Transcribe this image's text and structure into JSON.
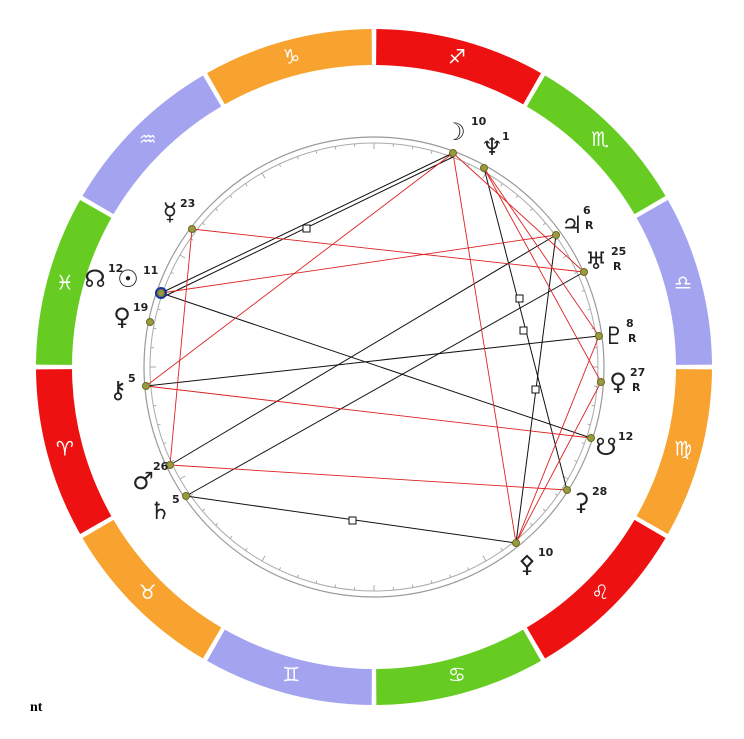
{
  "zodiac": [
    {
      "glyph": "♐"
    },
    {
      "glyph": "♏"
    },
    {
      "glyph": "♎"
    },
    {
      "glyph": "♍"
    },
    {
      "glyph": "♌"
    },
    {
      "glyph": "♋"
    },
    {
      "glyph": "♊"
    },
    {
      "glyph": "♉"
    },
    {
      "glyph": "♈"
    },
    {
      "glyph": "♓"
    },
    {
      "glyph": "♒"
    },
    {
      "glyph": "♑"
    }
  ],
  "planets": [
    {
      "glyph": "☽",
      "degree": "10"
    },
    {
      "glyph": "♆",
      "degree": "1"
    },
    {
      "glyph": "♃",
      "degree": "6",
      "retro": "R"
    },
    {
      "glyph": "♅",
      "degree": "25",
      "retro": "R"
    },
    {
      "glyph": "♇",
      "degree": "8",
      "retro": "R"
    },
    {
      "glyph": "♀",
      "degree": "27",
      "retro": "R"
    },
    {
      "glyph": "☋",
      "degree": "12"
    },
    {
      "glyph": "⚳",
      "degree": "28"
    },
    {
      "glyph": "⚴",
      "degree": "10"
    },
    {
      "glyph": "♄",
      "degree": "5"
    },
    {
      "glyph": "♂",
      "degree": "26"
    },
    {
      "glyph": "⚷",
      "degree": "5"
    },
    {
      "glyph": "♀",
      "degree": "19"
    },
    {
      "glyph": "☉",
      "degree": "11"
    },
    {
      "glyph": "☊",
      "degree": "12"
    },
    {
      "glyph": "☿",
      "degree": "23"
    }
  ],
  "footer": "nt"
}
